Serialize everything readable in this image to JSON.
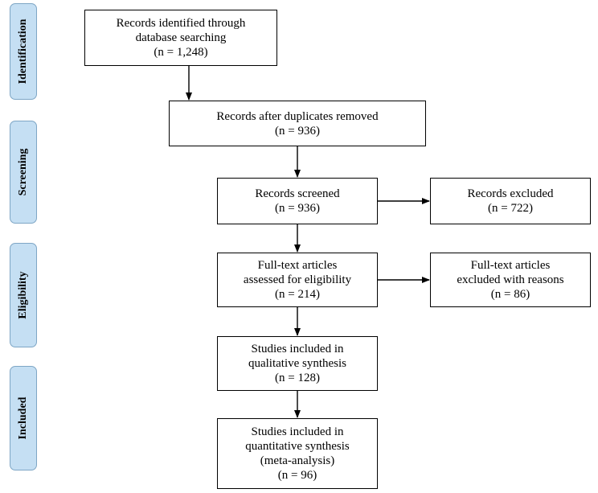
{
  "phases": {
    "identification": "Identification",
    "screening": "Screening",
    "eligibility": "Eligibility",
    "included": "Included"
  },
  "boxes": {
    "identified": [
      "Records identified through",
      "database searching",
      "(n = 1,248)"
    ],
    "duplicates_removed": [
      "Records after duplicates removed",
      "(n = 936)"
    ],
    "screened": [
      "Records screened",
      "(n = 936)"
    ],
    "excluded": [
      "Records excluded",
      "(n = 722)"
    ],
    "fulltext_assessed": [
      "Full-text articles",
      "assessed for eligibility",
      "(n = 214)"
    ],
    "fulltext_excluded": [
      "Full-text articles",
      "excluded with reasons",
      "(n = 86)"
    ],
    "qualitative": [
      "Studies included in",
      "qualitative synthesis",
      "(n = 128)"
    ],
    "quantitative": [
      "Studies included in",
      "quantitative synthesis",
      "(meta-analysis)",
      "(n = 96)"
    ]
  }
}
